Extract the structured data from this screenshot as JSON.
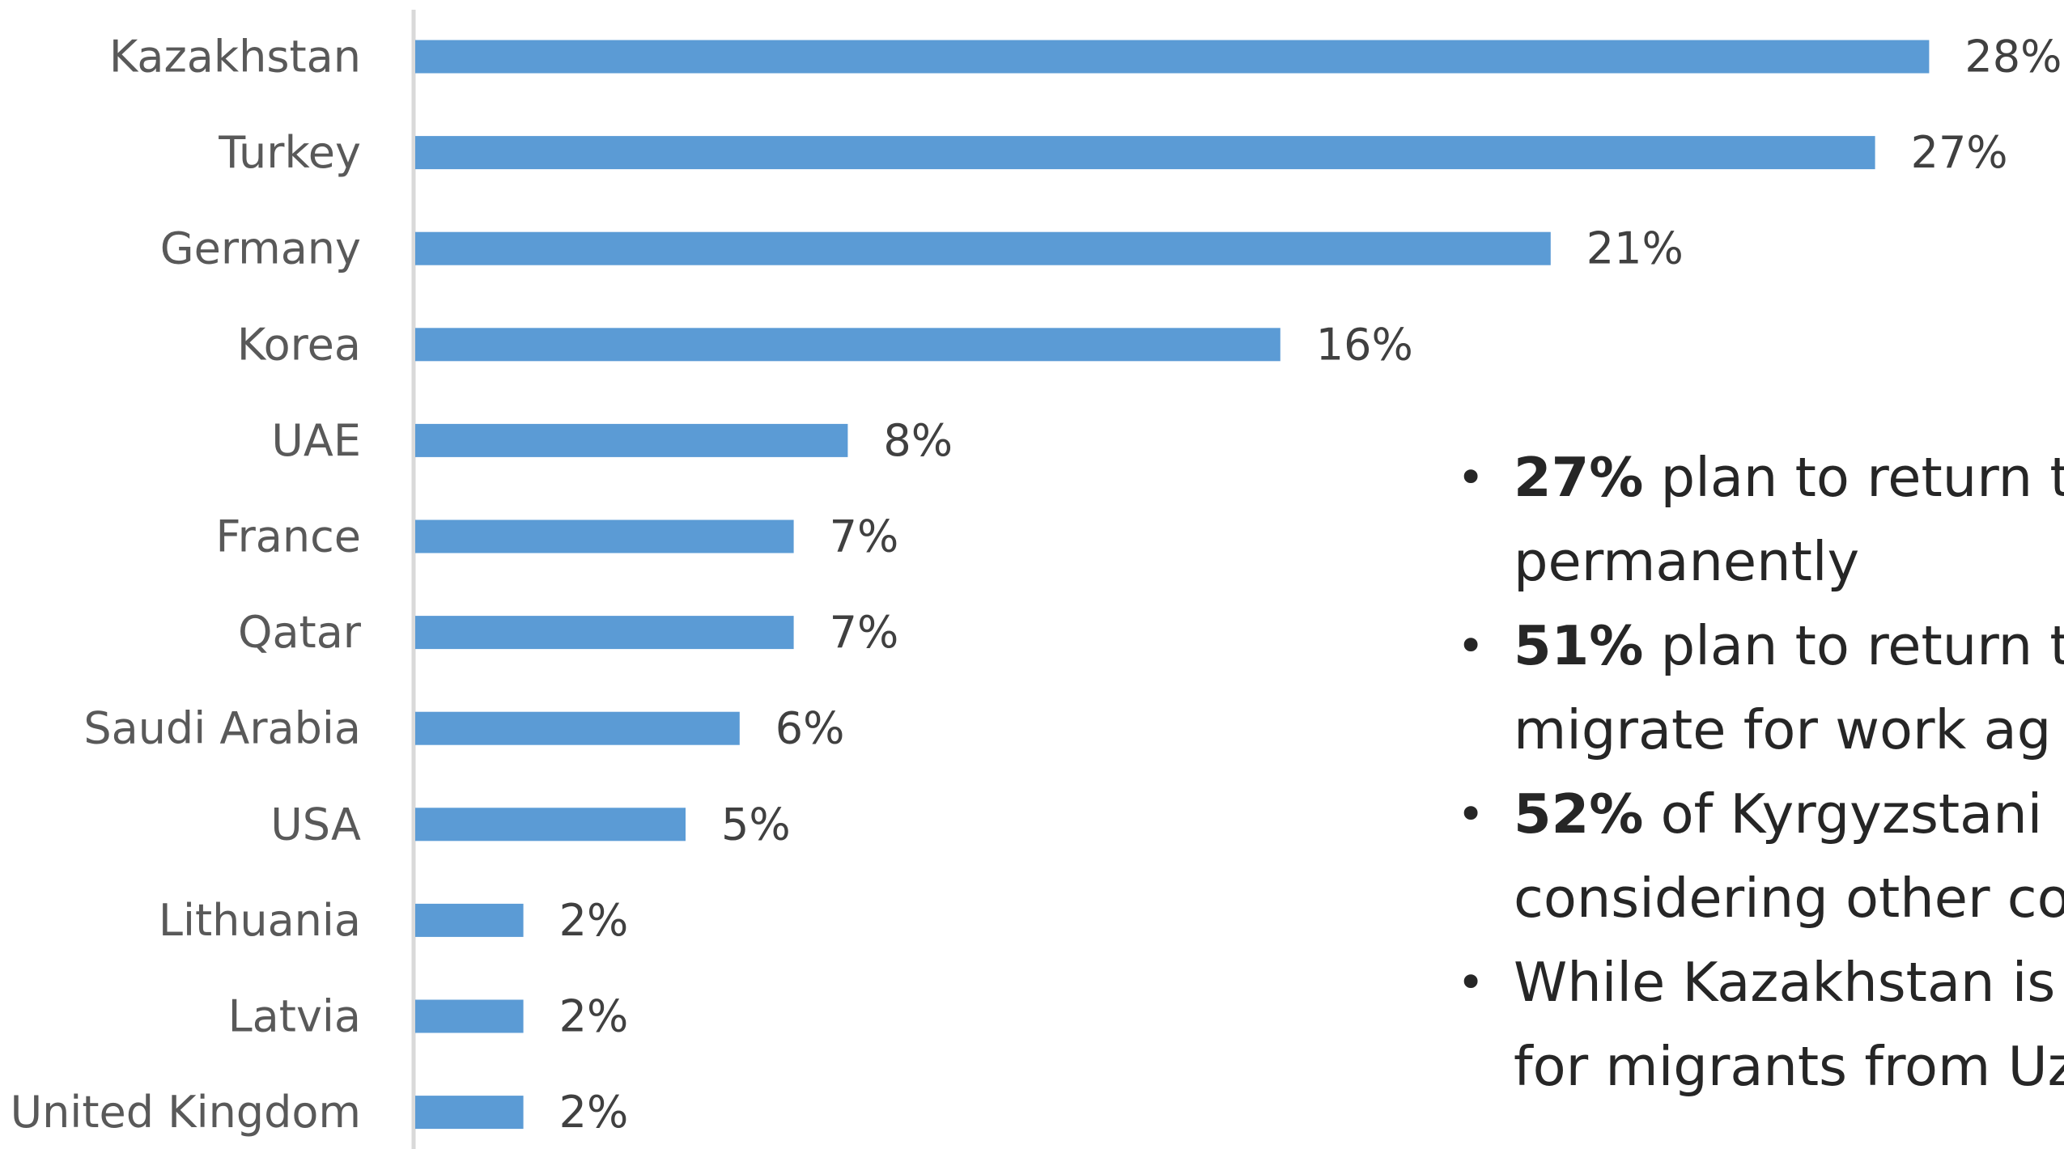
{
  "chart_data": {
    "type": "bar",
    "orientation": "horizontal",
    "categories": [
      "Kazakhstan",
      "Turkey",
      "Germany",
      "Korea",
      "UAE",
      "France",
      "Qatar",
      "Saudi Arabia",
      "USA",
      "Lithuania",
      "Latvia",
      "United Kingdom"
    ],
    "values": [
      28,
      27,
      21,
      16,
      8,
      7,
      7,
      6,
      5,
      2,
      2,
      2
    ],
    "value_labels": [
      "28%",
      "27%",
      "21%",
      "16%",
      "8%",
      "7%",
      "7%",
      "6%",
      "5%",
      "2%",
      "2%",
      "2%"
    ],
    "unit": "%",
    "xlim": [
      0,
      28
    ],
    "grid": false,
    "bar_color": "#5B9BD5",
    "axis_color": "#D9D9D9",
    "title": "",
    "xlabel": "",
    "ylabel": ""
  },
  "bullets": [
    {
      "lead": "27%",
      "text": " plan to return t",
      "cont": "permanently"
    },
    {
      "lead": "51%",
      "text": " plan to return t",
      "cont": "migrate for work ag"
    },
    {
      "lead": "52%",
      "text": " of Kyrgyzstani",
      "cont": "considering other co"
    },
    {
      "lead": "",
      "text": " While Kazakhstan is",
      "cont": "for migrants from Uz"
    }
  ]
}
